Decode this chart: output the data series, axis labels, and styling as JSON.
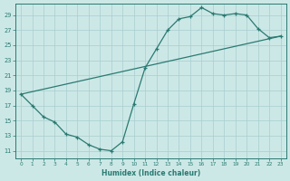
{
  "xlabel": "Humidex (Indice chaleur)",
  "bg_color": "#cce8e6",
  "line_color": "#2a7a72",
  "marker": "+",
  "xlim": [
    -0.5,
    23.5
  ],
  "ylim": [
    10,
    30.5
  ],
  "xticks": [
    0,
    1,
    2,
    3,
    4,
    5,
    6,
    7,
    8,
    9,
    10,
    11,
    12,
    13,
    14,
    15,
    16,
    17,
    18,
    19,
    20,
    21,
    22,
    23
  ],
  "yticks": [
    11,
    13,
    15,
    17,
    19,
    21,
    23,
    25,
    27,
    29
  ],
  "grid_color": "#a8cece",
  "main_points": [
    [
      0,
      18.5
    ],
    [
      1,
      17.0
    ],
    [
      2,
      15.5
    ],
    [
      3,
      14.8
    ],
    [
      4,
      13.2
    ],
    [
      5,
      12.8
    ],
    [
      6,
      11.8
    ],
    [
      7,
      11.2
    ],
    [
      8,
      11.0
    ],
    [
      9,
      12.2
    ],
    [
      10,
      17.2
    ],
    [
      11,
      22.0
    ],
    [
      12,
      24.5
    ],
    [
      13,
      27.0
    ],
    [
      14,
      28.5
    ],
    [
      15,
      28.8
    ],
    [
      16,
      30.0
    ],
    [
      17,
      29.2
    ],
    [
      18,
      29.0
    ],
    [
      19,
      29.2
    ],
    [
      20,
      29.0
    ],
    [
      21,
      27.2
    ],
    [
      22,
      26.0
    ],
    [
      23,
      26.2
    ]
  ],
  "diag_points": [
    [
      0,
      18.5
    ],
    [
      23,
      26.2
    ]
  ]
}
